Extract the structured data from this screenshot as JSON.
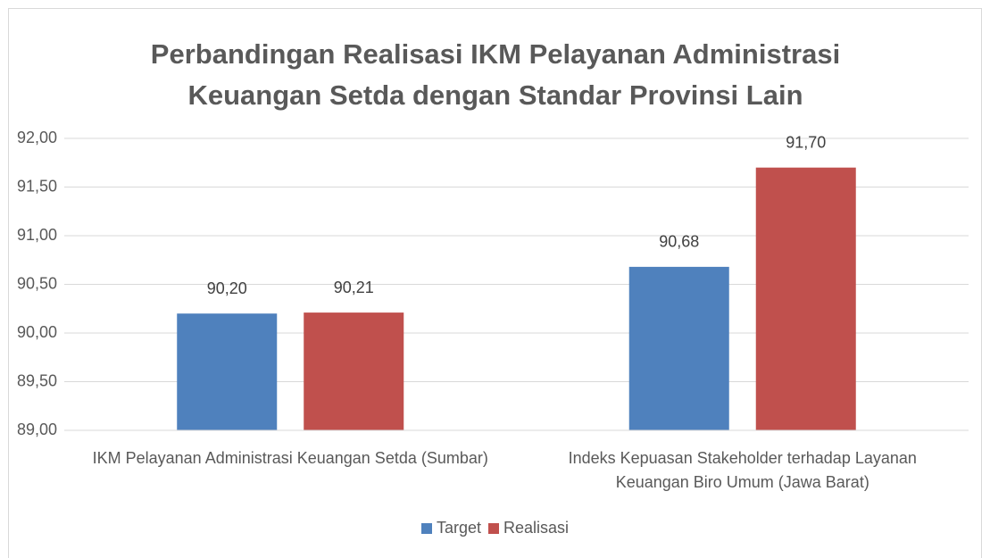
{
  "chart_data": {
    "type": "bar",
    "title": "Perbandingan Realisasi IKM Pelayanan Administrasi Keuangan Setda dengan Standar Provinsi Lain",
    "categories": [
      "IKM Pelayanan Administrasi Keuangan Setda (Sumbar)",
      "Indeks Kepuasan Stakeholder terhadap Layanan Keuangan Biro Umum (Jawa Barat)"
    ],
    "series": [
      {
        "name": "Target",
        "color": "#4f81bd",
        "values": [
          90.2,
          90.68
        ],
        "value_labels": [
          "90,20",
          "90,68"
        ]
      },
      {
        "name": "Realisasi",
        "color": "#c0504d",
        "values": [
          90.21,
          91.7
        ],
        "value_labels": [
          "90,21",
          "91,70"
        ]
      }
    ],
    "ylim": [
      89,
      92
    ],
    "yticks": [
      {
        "value": 89,
        "label": "89,00"
      },
      {
        "value": 89.5,
        "label": "89,50"
      },
      {
        "value": 90,
        "label": "90,00"
      },
      {
        "value": 90.5,
        "label": "90,50"
      },
      {
        "value": 91,
        "label": "91,00"
      },
      {
        "value": 91.5,
        "label": "91,50"
      },
      {
        "value": 92,
        "label": "92,00"
      }
    ],
    "grid": true,
    "legend": "bottom"
  }
}
